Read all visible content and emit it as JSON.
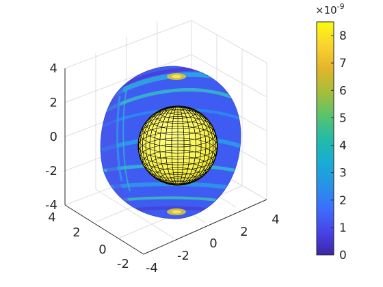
{
  "chart_data": {
    "type": "3d-surface",
    "title": "",
    "view": "perspective 3D, azimuth -37.5, elevation 30",
    "axes": {
      "x": {
        "ticks": [
          "-4",
          "-2",
          "0",
          "2",
          "4"
        ],
        "range": [
          -4,
          4
        ]
      },
      "y": {
        "ticks": [
          "-2",
          "0",
          "2",
          "4"
        ],
        "range": [
          -2,
          4
        ]
      },
      "z": {
        "ticks": [
          "-4",
          "-2",
          "0",
          "2",
          "4"
        ],
        "range": [
          -4,
          4
        ]
      }
    },
    "grid": true,
    "objects": [
      {
        "kind": "cutaway-spherical-shell",
        "outer_radius": 4,
        "color_mapped": true,
        "pattern": "concentric ring fringes"
      },
      {
        "kind": "meshed-sphere",
        "radius": 2,
        "face_color": "#ffff66",
        "edge_color": "#000000"
      }
    ],
    "colorbar": {
      "colormap": "parula",
      "ticks": [
        "0",
        "1",
        "2",
        "3",
        "4",
        "5",
        "6",
        "7",
        "8"
      ],
      "range": [
        0,
        8.5
      ],
      "exponent_label": "×10",
      "exponent_power": "-9",
      "location": "right",
      "stops": [
        "#3e26a8",
        "#4744e8",
        "#3c6ffd",
        "#2694e7",
        "#17aed2",
        "#24bba8",
        "#5ac46a",
        "#a8bd3a",
        "#e4b52b",
        "#fbd32e",
        "#f9fb0e"
      ]
    }
  }
}
